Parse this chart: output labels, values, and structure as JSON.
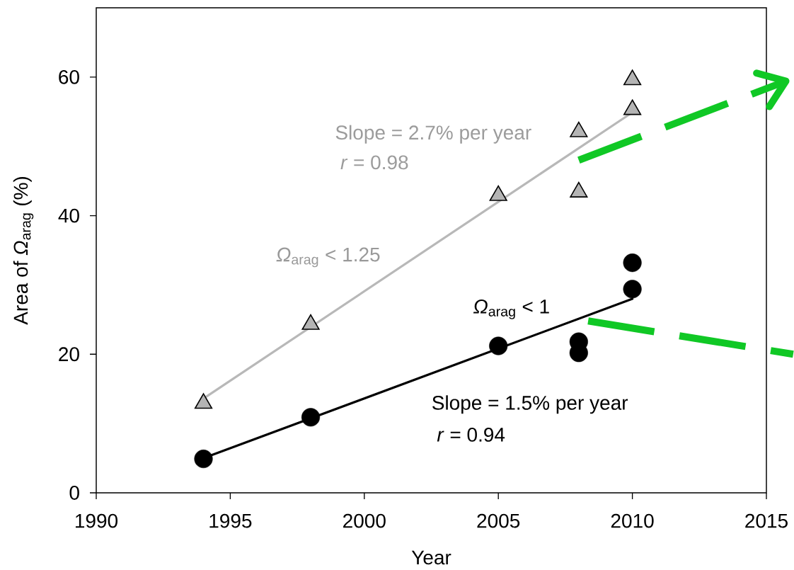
{
  "chart_data": {
    "type": "scatter",
    "xlabel": "Year",
    "ylabel": "Area of *Ω*$_{arag}$ (%)",
    "xlim": [
      1990,
      2015
    ],
    "ylim": [
      0,
      70
    ],
    "xticks": [
      1990,
      1995,
      2000,
      2005,
      2010,
      2015
    ],
    "yticks": [
      0,
      20,
      40,
      60
    ],
    "series": [
      {
        "name": "*Ω*$_{arag}$ < 1.25",
        "marker": "triangle",
        "color": "#b4b4b4",
        "x": [
          1994,
          1998,
          2005,
          2008,
          2008,
          2010,
          2010
        ],
        "values": [
          12.9,
          24.3,
          42.9,
          52.1,
          43.4,
          59.6,
          55.3
        ]
      },
      {
        "type": "line",
        "color": "#b8b8b8",
        "x": [
          1994,
          2010
        ],
        "values": [
          13.6,
          54.9
        ]
      },
      {
        "name": "*Ω*$_{arag}$ < 1",
        "marker": "circle",
        "color": "#000000",
        "x": [
          1994,
          1998,
          2005,
          2008,
          2008,
          2010,
          2010
        ],
        "values": [
          4.9,
          10.9,
          21.2,
          21.8,
          20.2,
          33.2,
          29.4
        ]
      },
      {
        "type": "line",
        "color": "#000000",
        "x": [
          1994,
          2010
        ],
        "values": [
          5.0,
          28.0
        ]
      }
    ],
    "annotations": [
      "Slope = 2.7% per year",
      "*r* = 0.98",
      "Slope = 1.5% per year",
      "*r* = 0.94"
    ]
  }
}
